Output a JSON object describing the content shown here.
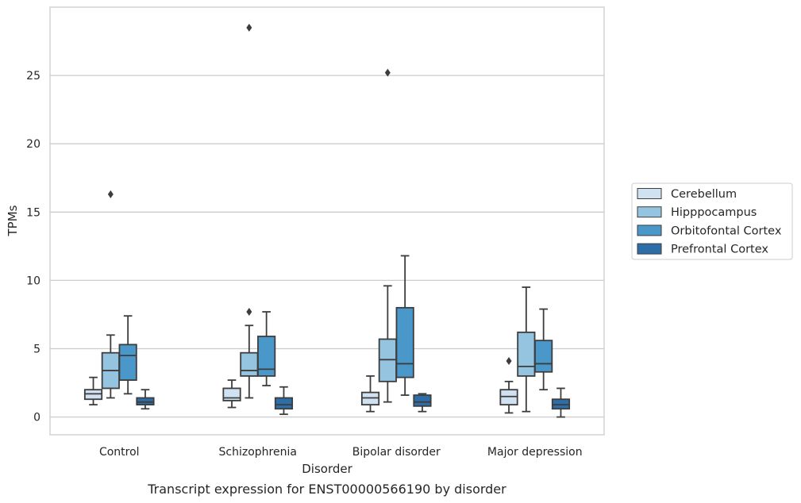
{
  "caption": "Transcript expression for ENST00000566190 by disorder",
  "chart_data": {
    "type": "box",
    "xlabel": "Disorder",
    "ylabel": "TPMs",
    "ylim": [
      -1.3,
      30.0
    ],
    "yticks": [
      0,
      5,
      10,
      15,
      20,
      25
    ],
    "grid": "horizontal",
    "legend_position": "right",
    "categories": [
      "Control",
      "Schizophrenia",
      "Bipolar disorder",
      "Major depression"
    ],
    "series": [
      {
        "name": "Cerebellum",
        "color": "#d0e1f2",
        "boxes": [
          {
            "whisker_low": 0.9,
            "q1": 1.3,
            "median": 1.7,
            "q3": 2.0,
            "whisker_high": 2.9,
            "outliers": []
          },
          {
            "whisker_low": 0.7,
            "q1": 1.2,
            "median": 1.4,
            "q3": 2.1,
            "whisker_high": 2.7,
            "outliers": []
          },
          {
            "whisker_low": 0.4,
            "q1": 0.9,
            "median": 1.4,
            "q3": 1.8,
            "whisker_high": 3.0,
            "outliers": []
          },
          {
            "whisker_low": 0.3,
            "q1": 0.9,
            "median": 1.5,
            "q3": 2.0,
            "whisker_high": 2.6,
            "outliers": [
              4.1
            ]
          }
        ]
      },
      {
        "name": "Hipppocampus",
        "color": "#94c4df",
        "boxes": [
          {
            "whisker_low": 1.4,
            "q1": 2.1,
            "median": 3.4,
            "q3": 4.7,
            "whisker_high": 6.0,
            "outliers": [
              16.3
            ]
          },
          {
            "whisker_low": 1.4,
            "q1": 3.0,
            "median": 3.4,
            "q3": 4.7,
            "whisker_high": 6.7,
            "outliers": [
              7.7,
              28.5
            ]
          },
          {
            "whisker_low": 1.1,
            "q1": 2.6,
            "median": 4.2,
            "q3": 5.7,
            "whisker_high": 9.6,
            "outliers": [
              25.2
            ]
          },
          {
            "whisker_low": 0.4,
            "q1": 3.0,
            "median": 3.7,
            "q3": 6.2,
            "whisker_high": 9.5,
            "outliers": []
          }
        ]
      },
      {
        "name": "Orbitofontal Cortex",
        "color": "#4a98c9",
        "boxes": [
          {
            "whisker_low": 1.7,
            "q1": 2.7,
            "median": 4.5,
            "q3": 5.3,
            "whisker_high": 7.4,
            "outliers": []
          },
          {
            "whisker_low": 2.3,
            "q1": 3.0,
            "median": 3.5,
            "q3": 5.9,
            "whisker_high": 7.7,
            "outliers": []
          },
          {
            "whisker_low": 1.6,
            "q1": 2.9,
            "median": 3.9,
            "q3": 8.0,
            "whisker_high": 11.8,
            "outliers": []
          },
          {
            "whisker_low": 2.0,
            "q1": 3.3,
            "median": 3.9,
            "q3": 5.6,
            "whisker_high": 7.9,
            "outliers": []
          }
        ]
      },
      {
        "name": "Prefrontal Cortex",
        "color": "#2e6ea8",
        "boxes": [
          {
            "whisker_low": 0.6,
            "q1": 0.9,
            "median": 1.1,
            "q3": 1.4,
            "whisker_high": 2.0,
            "outliers": []
          },
          {
            "whisker_low": 0.2,
            "q1": 0.6,
            "median": 0.9,
            "q3": 1.4,
            "whisker_high": 2.2,
            "outliers": []
          },
          {
            "whisker_low": 0.4,
            "q1": 0.8,
            "median": 1.1,
            "q3": 1.6,
            "whisker_high": 1.7,
            "outliers": []
          },
          {
            "whisker_low": 0.0,
            "q1": 0.6,
            "median": 0.9,
            "q3": 1.3,
            "whisker_high": 2.1,
            "outliers": []
          }
        ]
      }
    ]
  }
}
